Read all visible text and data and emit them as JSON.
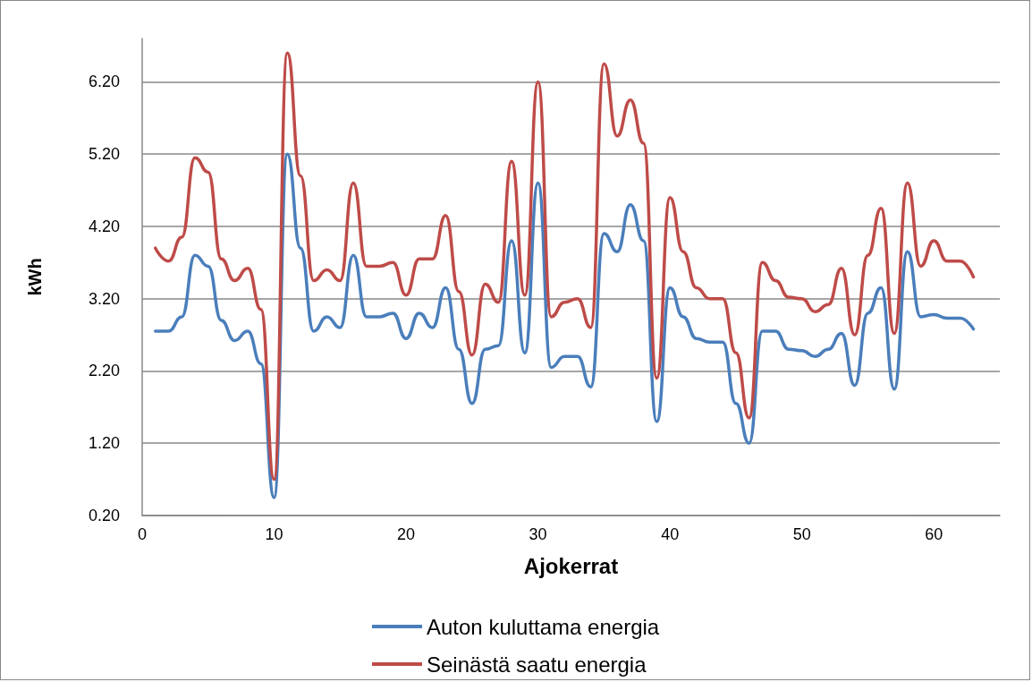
{
  "chart_data": {
    "type": "line",
    "xlabel": "Ajokerrat",
    "ylabel": "kWh",
    "x": [
      1,
      2,
      3,
      4,
      5,
      6,
      7,
      8,
      9,
      10,
      11,
      12,
      13,
      14,
      15,
      16,
      17,
      18,
      19,
      20,
      21,
      22,
      23,
      24,
      25,
      26,
      27,
      28,
      29,
      30,
      31,
      32,
      33,
      34,
      35,
      36,
      37,
      38,
      39,
      40,
      41,
      42,
      43,
      44,
      45,
      46,
      47,
      48,
      49,
      50,
      51,
      52,
      53,
      54,
      55,
      56,
      57,
      58,
      59,
      60,
      61,
      62,
      63
    ],
    "series": [
      {
        "name": "Auton kuluttama energia",
        "color": "#4a7ebb",
        "values": [
          2.75,
          2.75,
          2.95,
          3.8,
          3.65,
          2.9,
          2.62,
          2.75,
          2.3,
          0.45,
          5.2,
          3.9,
          2.75,
          2.95,
          2.8,
          3.8,
          2.95,
          2.95,
          3.0,
          2.65,
          3.0,
          2.8,
          3.35,
          2.5,
          1.75,
          2.5,
          2.55,
          4.0,
          2.45,
          4.8,
          2.25,
          2.4,
          2.4,
          1.98,
          4.1,
          3.85,
          4.5,
          4.0,
          1.5,
          3.35,
          2.95,
          2.65,
          2.6,
          2.6,
          1.75,
          1.2,
          2.75,
          2.75,
          2.5,
          2.48,
          2.4,
          2.5,
          2.72,
          2.0,
          3.0,
          3.35,
          1.95,
          3.85,
          2.95,
          2.98,
          2.93,
          2.93,
          2.78
        ]
      },
      {
        "name": "Seinästä saatu energia",
        "color": "#be4b48",
        "values": [
          3.9,
          3.72,
          4.05,
          5.15,
          4.95,
          3.75,
          3.45,
          3.62,
          3.05,
          0.7,
          6.6,
          4.9,
          3.45,
          3.6,
          3.45,
          4.8,
          3.65,
          3.65,
          3.7,
          3.25,
          3.75,
          3.75,
          4.35,
          3.3,
          2.42,
          3.4,
          3.15,
          5.1,
          3.25,
          6.2,
          2.95,
          3.15,
          3.2,
          2.8,
          6.45,
          5.45,
          5.95,
          5.35,
          2.1,
          4.6,
          3.85,
          3.35,
          3.2,
          3.2,
          2.45,
          1.55,
          3.7,
          3.45,
          3.22,
          3.2,
          3.02,
          3.12,
          3.62,
          2.7,
          3.8,
          4.45,
          2.72,
          4.8,
          3.65,
          4.0,
          3.72,
          3.72,
          3.5
        ]
      }
    ],
    "xlim": [
      0,
      65
    ],
    "xticks": [
      0,
      10,
      20,
      30,
      40,
      50,
      60
    ],
    "ylim": [
      0.2,
      6.8
    ],
    "yticks": [
      {
        "value": 0.2,
        "label": "0.20"
      },
      {
        "value": 1.2,
        "label": "1.20"
      },
      {
        "value": 2.2,
        "label": "2.20"
      },
      {
        "value": 3.2,
        "label": "3.20"
      },
      {
        "value": 4.2,
        "label": "4.20"
      },
      {
        "value": 5.2,
        "label": "5.20"
      },
      {
        "value": 6.2,
        "label": "6.20"
      }
    ],
    "grid": "y",
    "legend": "bottom",
    "marker": "none",
    "line_style": "solid"
  }
}
